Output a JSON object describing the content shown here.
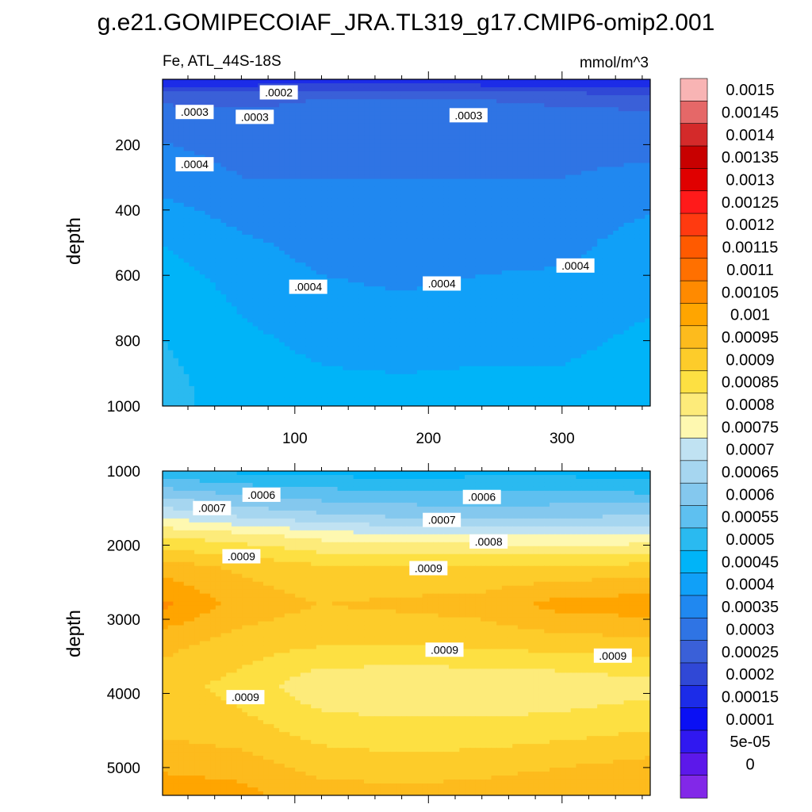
{
  "title": "g.e21.GOMIPECOIAF_JRA.TL319_g17.CMIP6-omip2.001",
  "chart_data": [
    {
      "type": "heatmap",
      "panel": "upper",
      "variable_label": "Fe, ATL_44S-18S",
      "units": "mmol/m^3",
      "ylabel": "depth",
      "y_reversed": true,
      "xlim": [
        1,
        366
      ],
      "ylim": [
        0,
        1000
      ],
      "x_ticks": [
        100,
        200,
        300
      ],
      "y_ticks": [
        200,
        400,
        600,
        800,
        1000
      ],
      "x": [
        1,
        60,
        120,
        180,
        240,
        300,
        366
      ],
      "depth": [
        10,
        60,
        150,
        300,
        500,
        650,
        800,
        950
      ],
      "values": [
        [
          0.00018,
          0.00018,
          0.00019,
          0.00019,
          0.00018,
          0.00018,
          0.00018
        ],
        [
          0.00029,
          0.00029,
          0.0003,
          0.0003,
          0.0003,
          0.00029,
          0.00028
        ],
        [
          0.00034,
          0.00032,
          0.00032,
          0.00033,
          0.00032,
          0.00033,
          0.00033
        ],
        [
          0.00038,
          0.00035,
          0.00035,
          0.00035,
          0.00035,
          0.00035,
          0.00036
        ],
        [
          0.00045,
          0.00041,
          0.00038,
          0.00037,
          0.00038,
          0.00038,
          0.00043
        ],
        [
          0.00048,
          0.00044,
          0.00041,
          0.0004,
          0.00041,
          0.00042,
          0.00044
        ],
        [
          0.0005,
          0.00046,
          0.00044,
          0.00043,
          0.00044,
          0.00044,
          0.00046
        ],
        [
          0.00052,
          0.00047,
          0.00046,
          0.00046,
          0.00046,
          0.00046,
          0.00047
        ]
      ],
      "contour_labels": [
        {
          "text": ".0002",
          "x": 88,
          "depth": 40
        },
        {
          "text": ".0003",
          "x": 25,
          "depth": 100
        },
        {
          "text": ".0003",
          "x": 70,
          "depth": 115
        },
        {
          "text": ".0003",
          "x": 230,
          "depth": 110
        },
        {
          "text": ".0004",
          "x": 25,
          "depth": 260
        },
        {
          "text": ".0004",
          "x": 110,
          "depth": 635
        },
        {
          "text": ".0004",
          "x": 210,
          "depth": 625
        },
        {
          "text": ".0004",
          "x": 310,
          "depth": 570
        }
      ]
    },
    {
      "type": "heatmap",
      "panel": "lower",
      "ylabel": "depth",
      "y_reversed": true,
      "xlim": [
        1,
        366
      ],
      "ylim": [
        1000,
        5375
      ],
      "y_ticks": [
        1000,
        2000,
        3000,
        4000,
        5000
      ],
      "x": [
        1,
        60,
        120,
        180,
        240,
        300,
        366
      ],
      "depth": [
        1000,
        1300,
        1600,
        1900,
        2300,
        2800,
        3300,
        3900,
        4500,
        5000,
        5300
      ],
      "values": [
        [
          0.00051,
          0.00049,
          0.00048,
          0.00047,
          0.00048,
          0.00048,
          0.00047
        ],
        [
          0.00063,
          0.00059,
          0.00057,
          0.00056,
          0.00056,
          0.00056,
          0.00055
        ],
        [
          0.00074,
          0.00069,
          0.00066,
          0.00064,
          0.00063,
          0.00064,
          0.00065
        ],
        [
          0.00085,
          0.00083,
          0.00079,
          0.00077,
          0.00077,
          0.00076,
          0.00077
        ],
        [
          0.00098,
          0.00094,
          0.00091,
          0.00091,
          0.00091,
          0.00091,
          0.00092
        ],
        [
          0.00106,
          0.00098,
          0.00095,
          0.00096,
          0.00097,
          0.00102,
          0.00103
        ],
        [
          0.00097,
          0.00093,
          0.00091,
          0.00091,
          0.00092,
          0.00093,
          0.00094
        ],
        [
          0.00092,
          0.00088,
          0.00081,
          0.0008,
          0.0008,
          0.00081,
          0.00083
        ],
        [
          0.00094,
          0.00092,
          0.00088,
          0.00087,
          0.00087,
          0.00088,
          0.0009
        ],
        [
          0.00099,
          0.00098,
          0.00093,
          0.00092,
          0.00093,
          0.00095,
          0.00097
        ],
        [
          0.00103,
          0.00101,
          0.00097,
          0.00096,
          0.00097,
          0.00099,
          0.001
        ]
      ],
      "contour_labels": [
        {
          "text": ".0006",
          "x": 75,
          "depth": 1320
        },
        {
          "text": ".0006",
          "x": 240,
          "depth": 1350
        },
        {
          "text": ".0007",
          "x": 38,
          "depth": 1500
        },
        {
          "text": ".0007",
          "x": 210,
          "depth": 1660
        },
        {
          "text": ".0008",
          "x": 245,
          "depth": 1950
        },
        {
          "text": ".0009",
          "x": 60,
          "depth": 2150
        },
        {
          "text": ".0009",
          "x": 200,
          "depth": 2310
        },
        {
          "text": ".0009",
          "x": 212,
          "depth": 3410
        },
        {
          "text": ".0009",
          "x": 338,
          "depth": 3490
        },
        {
          "text": ".0009",
          "x": 63,
          "depth": 4050
        }
      ]
    }
  ],
  "colorbar": {
    "labels": [
      "0.0015",
      "0.00145",
      "0.0014",
      "0.00135",
      "0.0013",
      "0.00125",
      "0.0012",
      "0.00115",
      "0.0011",
      "0.00105",
      "0.001",
      "0.00095",
      "0.0009",
      "0.00085",
      "0.0008",
      "0.00075",
      "0.0007",
      "0.00065",
      "0.0006",
      "0.00055",
      "0.0005",
      "0.00045",
      "0.0004",
      "0.00035",
      "0.0003",
      "0.00025",
      "0.0002",
      "0.00015",
      "0.0001",
      "5e-05",
      "0"
    ],
    "colors": [
      "#f8b4b4",
      "#e56868",
      "#d42a2a",
      "#c80000",
      "#e00000",
      "#ff1a1a",
      "#ff3a10",
      "#ff5a00",
      "#ff7000",
      "#ff8a00",
      "#ffa500",
      "#fdbb1d",
      "#fdcc2a",
      "#fde042",
      "#fdeb7a",
      "#fef8b0",
      "#c0e2f2",
      "#a6d6f0",
      "#84c8ee",
      "#5ec0f0",
      "#2abaf0",
      "#00b4f8",
      "#10a0f8",
      "#2088f0",
      "#2f74e4",
      "#3a60d8",
      "#3048d6",
      "#1c2ce8",
      "#0a10f4",
      "#3018f0",
      "#5c18ea",
      "#8228e8"
    ]
  }
}
